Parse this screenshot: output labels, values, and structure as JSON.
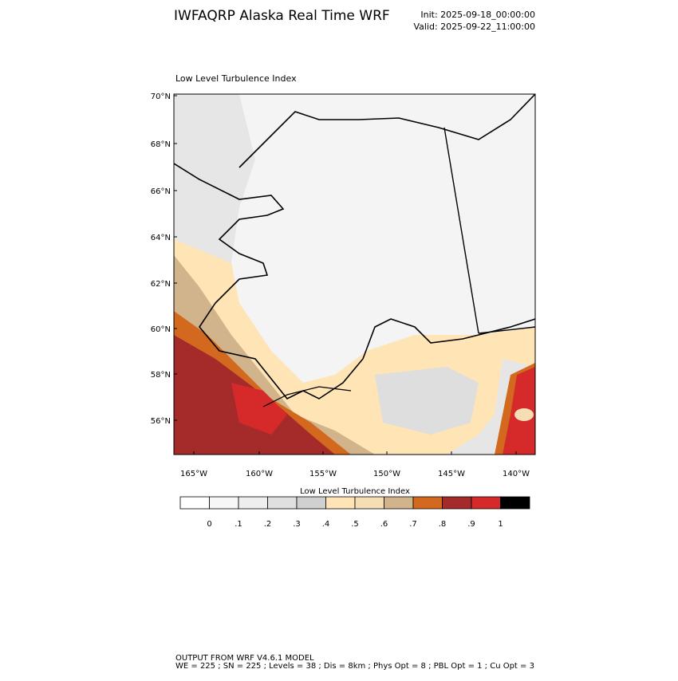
{
  "header": {
    "title": "IWFAQRP Alaska Real Time WRF",
    "init": "Init: 2025-09-18_00:00:00",
    "valid": "Valid: 2025-09-22_11:00:00"
  },
  "map": {
    "title": "Low Level Turbulence Index",
    "lat_labels": [
      "70°N",
      "68°N",
      "66°N",
      "64°N",
      "62°N",
      "60°N",
      "58°N",
      "56°N"
    ],
    "lon_labels": [
      "165°W",
      "160°W",
      "155°W",
      "150°W",
      "145°W",
      "140°W"
    ]
  },
  "colorbar": {
    "title": "Low Level Turbulence Index",
    "colors": [
      "#ffffff",
      "#f7f7f7",
      "#eeeeee",
      "#e0e0e0",
      "#d0d0d0",
      "#ffe4b5",
      "#f5deb3",
      "#d2b48c",
      "#d2691e",
      "#a52a2a",
      "#d62a2a",
      "#000000"
    ],
    "ticks": [
      0,
      {
        "value": 0.1,
        "label": ".1"
      },
      {
        "value": 0.2,
        "label": ".2"
      },
      {
        "value": 0.3,
        "label": ".3"
      },
      {
        "value": 0.4,
        "label": ".4"
      },
      {
        "value": 0.5,
        "label": ".5"
      },
      {
        "value": 0.6,
        "label": ".6"
      },
      {
        "value": 0.7,
        "label": ".7"
      },
      {
        "value": 0.8,
        "label": ".8"
      },
      {
        "value": 0.9,
        "label": ".9"
      },
      1
    ]
  },
  "footer": {
    "line1": "OUTPUT FROM WRF V4.6.1 MODEL",
    "line2": "WE = 225 ; SN = 225 ; Levels = 38 ; Dis = 8km ; Phys Opt = 8 ; PBL Opt = 1 ; Cu Opt = 3"
  }
}
